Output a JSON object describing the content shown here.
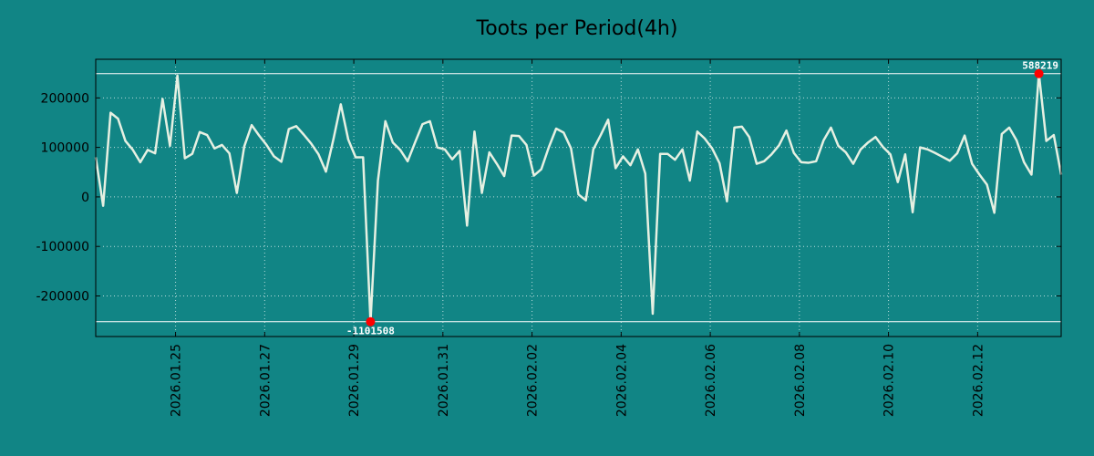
{
  "chart_data": {
    "type": "line",
    "title": "Toots per Period(4h)",
    "x": [
      "2026-01-23T05:00",
      "2026-01-23T09:00",
      "2026-01-23T13:00",
      "2026-01-23T17:00",
      "2026-01-23T21:00",
      "2026-01-24T01:00",
      "2026-01-24T05:00",
      "2026-01-24T09:00",
      "2026-01-24T13:00",
      "2026-01-24T17:00",
      "2026-01-24T21:00",
      "2026-01-25T01:00",
      "2026-01-25T05:00",
      "2026-01-25T09:00",
      "2026-01-25T13:00",
      "2026-01-25T17:00",
      "2026-01-25T21:00",
      "2026-01-26T01:00",
      "2026-01-26T05:00",
      "2026-01-26T09:00",
      "2026-01-26T13:00",
      "2026-01-26T17:00",
      "2026-01-26T21:00",
      "2026-01-27T01:00",
      "2026-01-27T05:00",
      "2026-01-27T09:00",
      "2026-01-27T13:00",
      "2026-01-27T17:00",
      "2026-01-27T21:00",
      "2026-01-28T01:00",
      "2026-01-28T05:00",
      "2026-01-28T09:00",
      "2026-01-28T13:00",
      "2026-01-28T17:00",
      "2026-01-28T21:00",
      "2026-01-29T01:00",
      "2026-01-29T05:00",
      "2026-01-29T09:00",
      "2026-01-29T13:00",
      "2026-01-29T17:00",
      "2026-01-29T21:00",
      "2026-01-30T01:00",
      "2026-01-30T05:00",
      "2026-01-30T09:00",
      "2026-01-30T13:00",
      "2026-01-30T17:00",
      "2026-01-30T21:00",
      "2026-01-31T01:00",
      "2026-01-31T05:00",
      "2026-01-31T09:00",
      "2026-01-31T13:00",
      "2026-01-31T17:00",
      "2026-01-31T21:00",
      "2026-02-01T01:00",
      "2026-02-01T05:00",
      "2026-02-01T09:00",
      "2026-02-01T13:00",
      "2026-02-01T17:00",
      "2026-02-01T21:00",
      "2026-02-02T01:00",
      "2026-02-02T05:00",
      "2026-02-02T09:00",
      "2026-02-02T13:00",
      "2026-02-02T17:00",
      "2026-02-02T21:00",
      "2026-02-03T01:00",
      "2026-02-03T05:00",
      "2026-02-03T09:00",
      "2026-02-03T13:00",
      "2026-02-03T17:00",
      "2026-02-03T21:00",
      "2026-02-04T01:00",
      "2026-02-04T05:00",
      "2026-02-04T09:00",
      "2026-02-04T13:00",
      "2026-02-04T17:00",
      "2026-02-04T21:00",
      "2026-02-05T01:00",
      "2026-02-05T05:00",
      "2026-02-05T09:00",
      "2026-02-05T13:00",
      "2026-02-05T17:00",
      "2026-02-05T21:00",
      "2026-02-06T01:00",
      "2026-02-06T05:00",
      "2026-02-06T09:00",
      "2026-02-06T13:00",
      "2026-02-06T17:00",
      "2026-02-06T21:00",
      "2026-02-07T01:00",
      "2026-02-07T05:00",
      "2026-02-07T09:00",
      "2026-02-07T13:00",
      "2026-02-07T17:00",
      "2026-02-07T21:00",
      "2026-02-08T01:00",
      "2026-02-08T05:00",
      "2026-02-08T09:00",
      "2026-02-08T13:00",
      "2026-02-08T17:00",
      "2026-02-08T21:00",
      "2026-02-09T01:00",
      "2026-02-09T05:00",
      "2026-02-09T09:00",
      "2026-02-09T13:00",
      "2026-02-09T17:00",
      "2026-02-09T21:00",
      "2026-02-10T01:00",
      "2026-02-10T05:00",
      "2026-02-10T09:00",
      "2026-02-10T13:00",
      "2026-02-10T17:00",
      "2026-02-10T21:00",
      "2026-02-11T01:00",
      "2026-02-11T05:00",
      "2026-02-11T09:00",
      "2026-02-11T13:00",
      "2026-02-11T17:00",
      "2026-02-11T21:00",
      "2026-02-12T01:00",
      "2026-02-12T05:00",
      "2026-02-12T09:00",
      "2026-02-12T13:00",
      "2026-02-12T17:00",
      "2026-02-12T21:00",
      "2026-02-13T01:00",
      "2026-02-13T05:00",
      "2026-02-13T09:00",
      "2026-02-13T13:00",
      "2026-02-13T17:00",
      "2026-02-13T21:00"
    ],
    "series": [
      {
        "color": "#e6f0e2",
        "values": [
          80000,
          -18000,
          170000,
          158000,
          113000,
          95000,
          70000,
          95000,
          88000,
          198000,
          103000,
          245000,
          78000,
          87000,
          131000,
          125000,
          98000,
          105000,
          88000,
          8000,
          102000,
          145000,
          124000,
          105000,
          82000,
          71000,
          137000,
          143000,
          126000,
          108000,
          86000,
          51000,
          116000,
          187000,
          116000,
          80000,
          80000,
          -252000,
          33000,
          153000,
          110000,
          95000,
          72000,
          110000,
          147000,
          153000,
          100000,
          96000,
          76000,
          93000,
          -58000,
          132000,
          8000,
          90000,
          67000,
          42000,
          124000,
          123000,
          105000,
          43000,
          56000,
          100000,
          138000,
          130000,
          98000,
          5000,
          -7000,
          96000,
          125000,
          156000,
          58000,
          82000,
          64000,
          96000,
          47000,
          -236000,
          87000,
          87000,
          75000,
          96000,
          33000,
          132000,
          118000,
          98000,
          68000,
          -9000,
          140000,
          142000,
          121000,
          67000,
          72000,
          86000,
          104000,
          134000,
          89000,
          70000,
          69000,
          72000,
          114000,
          140000,
          103000,
          90000,
          67000,
          96000,
          110000,
          121000,
          101000,
          86000,
          30000,
          86000,
          -31000,
          100000,
          96000,
          89000,
          81000,
          73000,
          88000,
          124000,
          67000,
          45000,
          25000,
          -32000,
          127000,
          140000,
          114000,
          70000,
          45000,
          249000,
          113000,
          125000,
          45000
        ]
      }
    ],
    "xlim": [
      "2026-01-23T05:00",
      "2026-02-13T21:00"
    ],
    "xticks": [
      {
        "value": "2026-01-25T00:00",
        "label": "2026.01.25"
      },
      {
        "value": "2026-01-27T00:00",
        "label": "2026.01.27"
      },
      {
        "value": "2026-01-29T00:00",
        "label": "2026.01.29"
      },
      {
        "value": "2026-01-31T00:00",
        "label": "2026.01.31"
      },
      {
        "value": "2026-02-02T00:00",
        "label": "2026.02.02"
      },
      {
        "value": "2026-02-04T00:00",
        "label": "2026.02.04"
      },
      {
        "value": "2026-02-06T00:00",
        "label": "2026.02.06"
      },
      {
        "value": "2026-02-08T00:00",
        "label": "2026.02.08"
      },
      {
        "value": "2026-02-10T00:00",
        "label": "2026.02.10"
      },
      {
        "value": "2026-02-12T00:00",
        "label": "2026.02.12"
      }
    ],
    "ylim": [
      -282000,
      278000
    ],
    "yticks": [
      -200000,
      -100000,
      0,
      100000,
      200000
    ],
    "grid": true,
    "hlines": [
      249000,
      -252000
    ],
    "annotations": [
      {
        "text": "588219",
        "x": "2026-02-13T09:00",
        "y": 249000
      },
      {
        "text": "-1101508",
        "x": "2026-01-29T09:00",
        "y": -252000
      }
    ]
  }
}
